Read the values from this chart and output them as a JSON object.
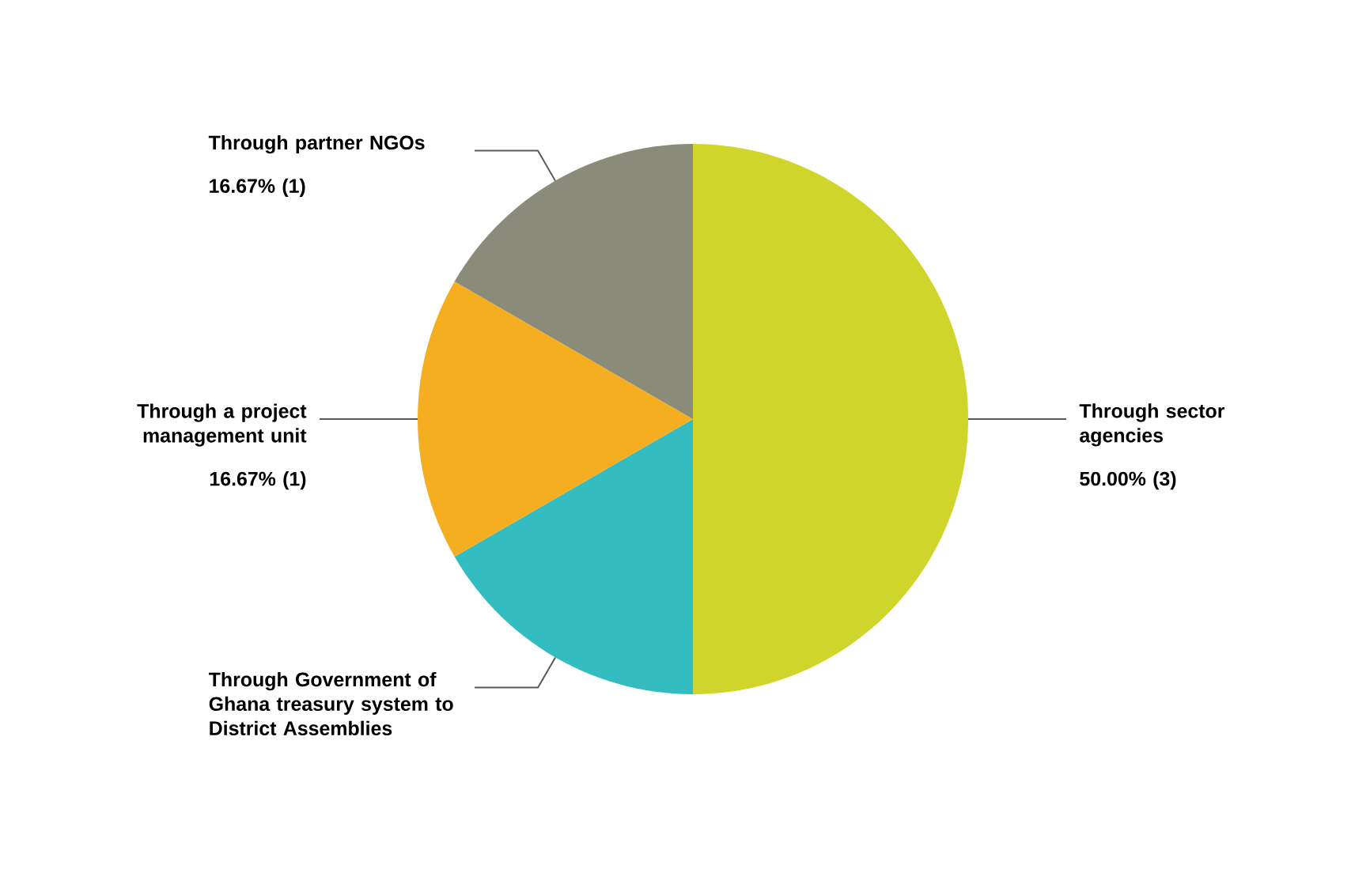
{
  "chart_data": {
    "type": "pie",
    "categories": [
      "Through sector agencies",
      "Through Government of Ghana treasury system to District Assemblies",
      "Through a project management unit",
      "Through partner NGOs"
    ],
    "values": [
      50.0,
      16.67,
      16.67,
      16.67
    ],
    "colors": [
      "#cfd52b",
      "#33bdc0",
      "#f5ae20",
      "#8a8b78"
    ],
    "value_labels": [
      "50.00% (3)",
      null,
      "16.67% (1)",
      "16.67% (1)"
    ]
  }
}
